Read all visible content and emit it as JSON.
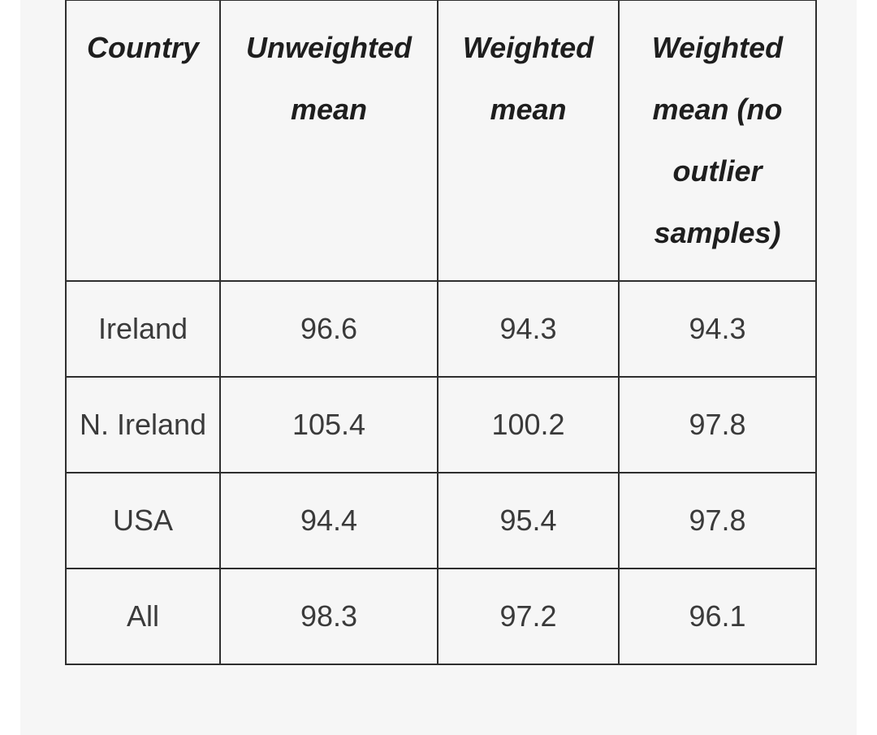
{
  "table": {
    "headers": [
      "Country",
      "Unweighted mean",
      "Weighted mean",
      "Weighted mean (no outlier samples)"
    ],
    "rows": [
      [
        "Ireland",
        "96.6",
        "94.3",
        "94.3"
      ],
      [
        "N. Ireland",
        "105.4",
        "100.2",
        "97.8"
      ],
      [
        "USA",
        "94.4",
        "95.4",
        "97.8"
      ],
      [
        "All",
        "98.3",
        "97.2",
        "96.1"
      ]
    ]
  }
}
